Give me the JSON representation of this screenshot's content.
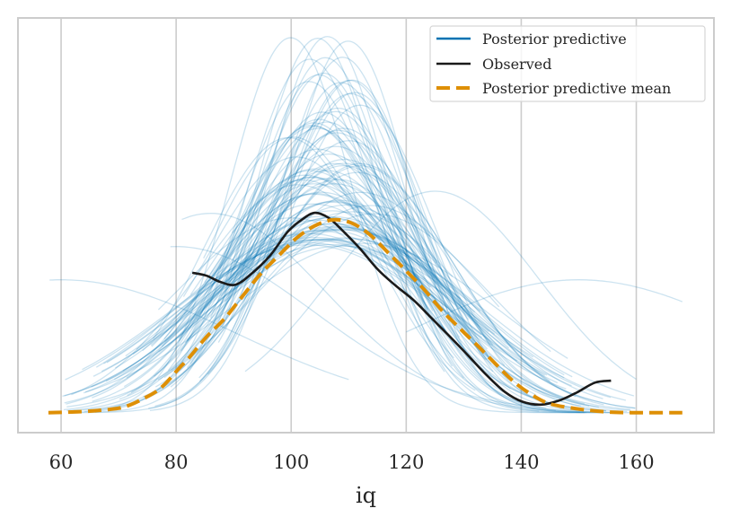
{
  "chart_data": {
    "type": "line",
    "title": "",
    "xlabel": "iq",
    "ylabel": "",
    "xlim": [
      52.5,
      173.5
    ],
    "ylim": [
      -0.002,
      0.0395
    ],
    "xticks": [
      60,
      80,
      100,
      120,
      140,
      160
    ],
    "xtick_labels": [
      "60",
      "80",
      "100",
      "120",
      "140",
      "160"
    ],
    "yticks": [],
    "grid": "vertical",
    "legend": {
      "placement": "top-right",
      "entries": [
        {
          "label": "Posterior predictive",
          "color": "#0072b2",
          "style": "solid"
        },
        {
          "label": "Observed",
          "color": "#1a1a1a",
          "style": "solid"
        },
        {
          "label": "Posterior predictive mean",
          "color": "#de8f05",
          "style": "dashed"
        }
      ]
    },
    "series": [
      {
        "name": "Observed",
        "color": "#1a1a1a",
        "x": [
          82.8,
          85.3,
          87.6,
          90.3,
          93.1,
          96.3,
          99.4,
          101.8,
          104.1,
          106.5,
          108.8,
          112.0,
          115.1,
          118.2,
          121.4,
          124.5,
          127.6,
          130.8,
          133.9,
          137.1,
          140.2,
          143.4,
          146.5,
          149.6,
          152.8,
          155.6
        ],
        "y": [
          0.014,
          0.0137,
          0.0131,
          0.0128,
          0.0139,
          0.0157,
          0.0181,
          0.0193,
          0.02,
          0.0195,
          0.0183,
          0.0164,
          0.0143,
          0.0127,
          0.0112,
          0.0094,
          0.0076,
          0.0057,
          0.0038,
          0.0021,
          0.0011,
          0.0008,
          0.0012,
          0.002,
          0.003,
          0.0032
        ]
      },
      {
        "name": "Posterior predictive mean",
        "color": "#de8f05",
        "x": [
          57.8,
          63.3,
          68.0,
          71.1,
          74.3,
          77.4,
          80.6,
          82.1,
          85.3,
          88.4,
          91.6,
          94.7,
          97.8,
          101.0,
          104.1,
          107.3,
          110.4,
          113.5,
          116.7,
          119.8,
          123.0,
          126.1,
          129.2,
          132.4,
          135.5,
          138.7,
          141.8,
          144.9,
          149.6,
          154.3,
          159.1,
          168.0
        ],
        "y": [
          0.0,
          0.0001,
          0.0003,
          0.0006,
          0.0014,
          0.0025,
          0.0045,
          0.0054,
          0.0076,
          0.0094,
          0.0117,
          0.0139,
          0.0157,
          0.0175,
          0.0187,
          0.0193,
          0.019,
          0.0179,
          0.0161,
          0.0143,
          0.0124,
          0.0103,
          0.0085,
          0.0067,
          0.0049,
          0.0031,
          0.0018,
          0.0009,
          0.0004,
          0.0001,
          0.0,
          0.0
        ]
      }
    ],
    "posterior_predictive": {
      "name": "Posterior predictive",
      "color": "#0072b2",
      "alpha": 0.2,
      "n_samples": 100,
      "seed": 7,
      "center_range": [
        98,
        116
      ],
      "sd_range": [
        10.5,
        24
      ],
      "start_range": [
        60,
        90
      ],
      "end_range": [
        122,
        160
      ],
      "notable_samples": [
        {
          "center": 106.3,
          "sd": 10.6,
          "start": 88,
          "end": 128
        },
        {
          "center": 104.8,
          "sd": 11.8,
          "start": 86,
          "end": 130
        },
        {
          "center": 110.3,
          "sd": 12.5,
          "start": 84,
          "end": 134
        },
        {
          "center": 99.5,
          "sd": 14.5,
          "start": 76,
          "end": 132
        },
        {
          "center": 86.0,
          "sd": 20.0,
          "start": 81,
          "end": 146
        },
        {
          "center": 80.0,
          "sd": 24.0,
          "start": 79,
          "end": 140
        },
        {
          "center": 125.0,
          "sd": 18.0,
          "start": 92,
          "end": 160
        },
        {
          "center": 150.0,
          "sd": 30.0,
          "start": 120,
          "end": 168
        },
        {
          "center": 60.0,
          "sd": 30.0,
          "start": 58,
          "end": 110
        }
      ]
    }
  }
}
